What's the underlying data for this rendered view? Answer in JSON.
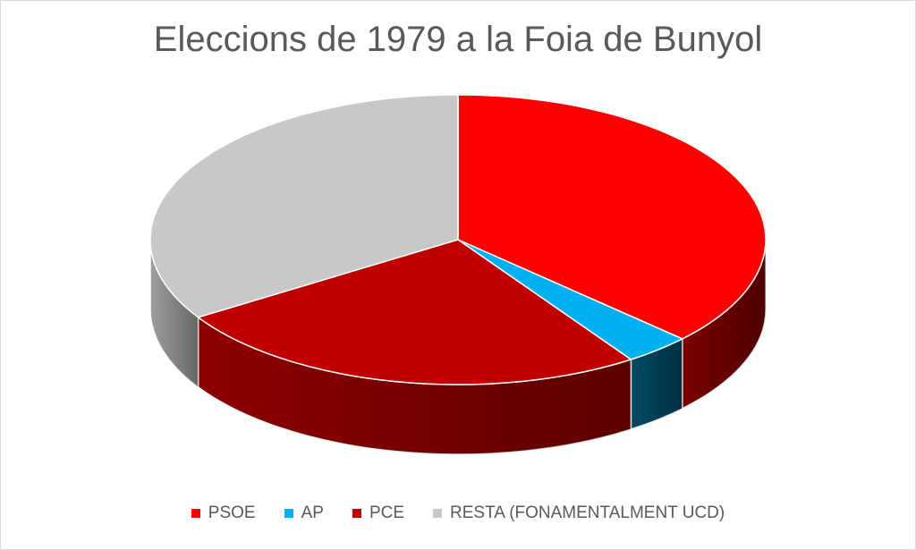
{
  "chart_data": {
    "type": "pie",
    "title": "Eleccions de 1979 a la Foia de Bunyol",
    "categories": [
      "PSOE",
      "AP",
      "PCE",
      "RESTA (FONAMENTALMENT UCD)"
    ],
    "values": [
      37.0,
      3.5,
      25.5,
      34.0
    ],
    "colors": [
      "#ff0000",
      "#00b0f0",
      "#c00000",
      "#c8c8c8"
    ],
    "side_colors": [
      "#7a0000",
      "#004a63",
      "#8e0000",
      "#9e9e9e"
    ],
    "legend_position": "bottom",
    "style": "3d-pie"
  }
}
